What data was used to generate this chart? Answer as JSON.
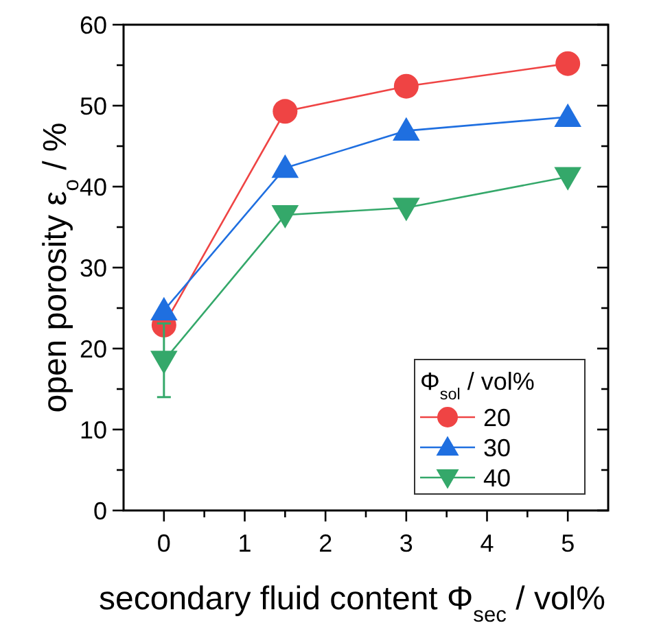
{
  "chart_data": {
    "type": "line",
    "xlabel": "secondary fluid content Φ$_{sec}$ / vol%",
    "ylabel": "open porosity ε$_{o}$ / %",
    "legend_title": "Φ$_{sol}$ / vol%",
    "legend": "bottom right",
    "grid": false,
    "x": [
      0,
      1.5,
      3,
      5
    ],
    "xlim": [
      -0.5,
      5.5
    ],
    "xticks": [
      0,
      {
        "value": 0.5,
        "label": null
      },
      1,
      {
        "value": 1.5,
        "label": null
      },
      2,
      {
        "value": 2.5,
        "label": null
      },
      3,
      {
        "value": 3.5,
        "label": null
      },
      4,
      {
        "value": 4.5,
        "label": null
      },
      5
    ],
    "ylim": [
      0,
      60
    ],
    "yticks": [
      0,
      {
        "value": 5,
        "label": null
      },
      10,
      {
        "value": 15,
        "label": null
      },
      20,
      {
        "value": 25,
        "label": null
      },
      30,
      {
        "value": 35,
        "label": null
      },
      40,
      {
        "value": 45,
        "label": null
      },
      50,
      {
        "value": 55,
        "label": null
      },
      60
    ],
    "series": [
      {
        "name": "20",
        "color": "#ef4444",
        "marker": "circle",
        "values": [
          22.9,
          49.3,
          52.4,
          55.2
        ]
      },
      {
        "name": "30",
        "color": "#1f6fe0",
        "marker": "triangle",
        "values": [
          24.7,
          42.3,
          46.9,
          48.6
        ]
      },
      {
        "name": "40",
        "color": "#34a86a",
        "marker": "triangle-down",
        "values": [
          18.5,
          36.5,
          37.4,
          41.2
        ],
        "errors": [
          [
            14,
            23.1
          ],
          null,
          null,
          null
        ]
      }
    ]
  }
}
